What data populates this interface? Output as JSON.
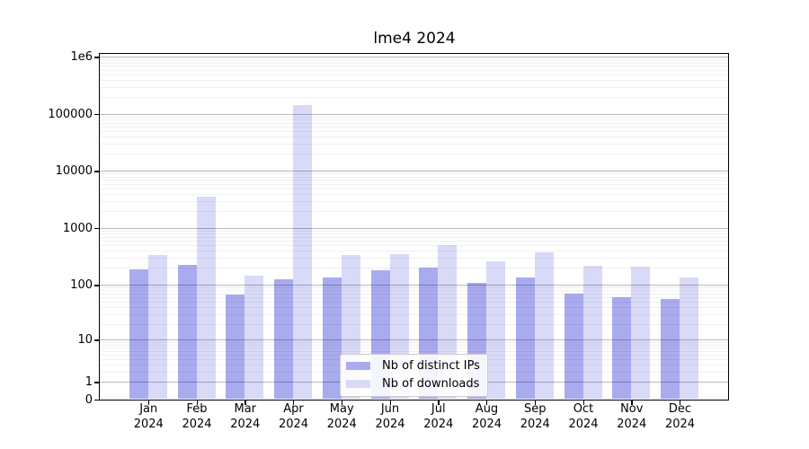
{
  "title": "lme4 2024",
  "colors": {
    "distinct_ips_bar": "#a9abef",
    "downloads_bar": "#d9daf8",
    "major_grid": "#b3b3b3",
    "minor_grid": "#ededed",
    "axis": "#000000",
    "legend_border": "#cccccc"
  },
  "legend": {
    "items": [
      {
        "label": "Nb of distinct IPs",
        "series_key": "distinct_ips"
      },
      {
        "label": "Nb of downloads",
        "series_key": "downloads"
      }
    ]
  },
  "y_axis": {
    "scale": "log10(value+1)",
    "ticks": [
      {
        "label": "1e6",
        "value": 1000000
      },
      {
        "label": "100000",
        "value": 100000
      },
      {
        "label": "10000",
        "value": 10000
      },
      {
        "label": "1000",
        "value": 1000
      },
      {
        "label": "100",
        "value": 100
      },
      {
        "label": "10",
        "value": 10
      },
      {
        "label": "1",
        "value": 1
      },
      {
        "label": "0",
        "value": 0
      }
    ]
  },
  "x_axis": {
    "months": [
      "Jan",
      "Feb",
      "Mar",
      "Apr",
      "May",
      "Jun",
      "Jul",
      "Aug",
      "Sep",
      "Oct",
      "Nov",
      "Dec"
    ],
    "year": "2024"
  },
  "chart_data": {
    "type": "bar",
    "title": "lme4 2024",
    "categories": [
      "Jan 2024",
      "Feb 2024",
      "Mar 2024",
      "Apr 2024",
      "May 2024",
      "Jun 2024",
      "Jul 2024",
      "Aug 2024",
      "Sep 2024",
      "Oct 2024",
      "Nov 2024",
      "Dec 2024"
    ],
    "series": [
      {
        "name": "Nb of distinct IPs",
        "color": "#a9abef",
        "values": [
          190,
          222,
          68,
          126,
          134,
          182,
          200,
          107,
          137,
          70,
          61,
          57
        ]
      },
      {
        "name": "Nb of downloads",
        "color": "#d9daf8",
        "values": [
          330,
          3600,
          148,
          142000,
          340,
          351,
          500,
          265,
          368,
          215,
          206,
          137
        ]
      }
    ],
    "xlabel": "",
    "ylabel": "",
    "yscale": "log10(v+1), labeled ticks 0,1,10,100,1000,10000,100000,1e6",
    "ylim": [
      0,
      1150000
    ],
    "grid": "horizontal major + minor",
    "legend_position": "lower center"
  }
}
